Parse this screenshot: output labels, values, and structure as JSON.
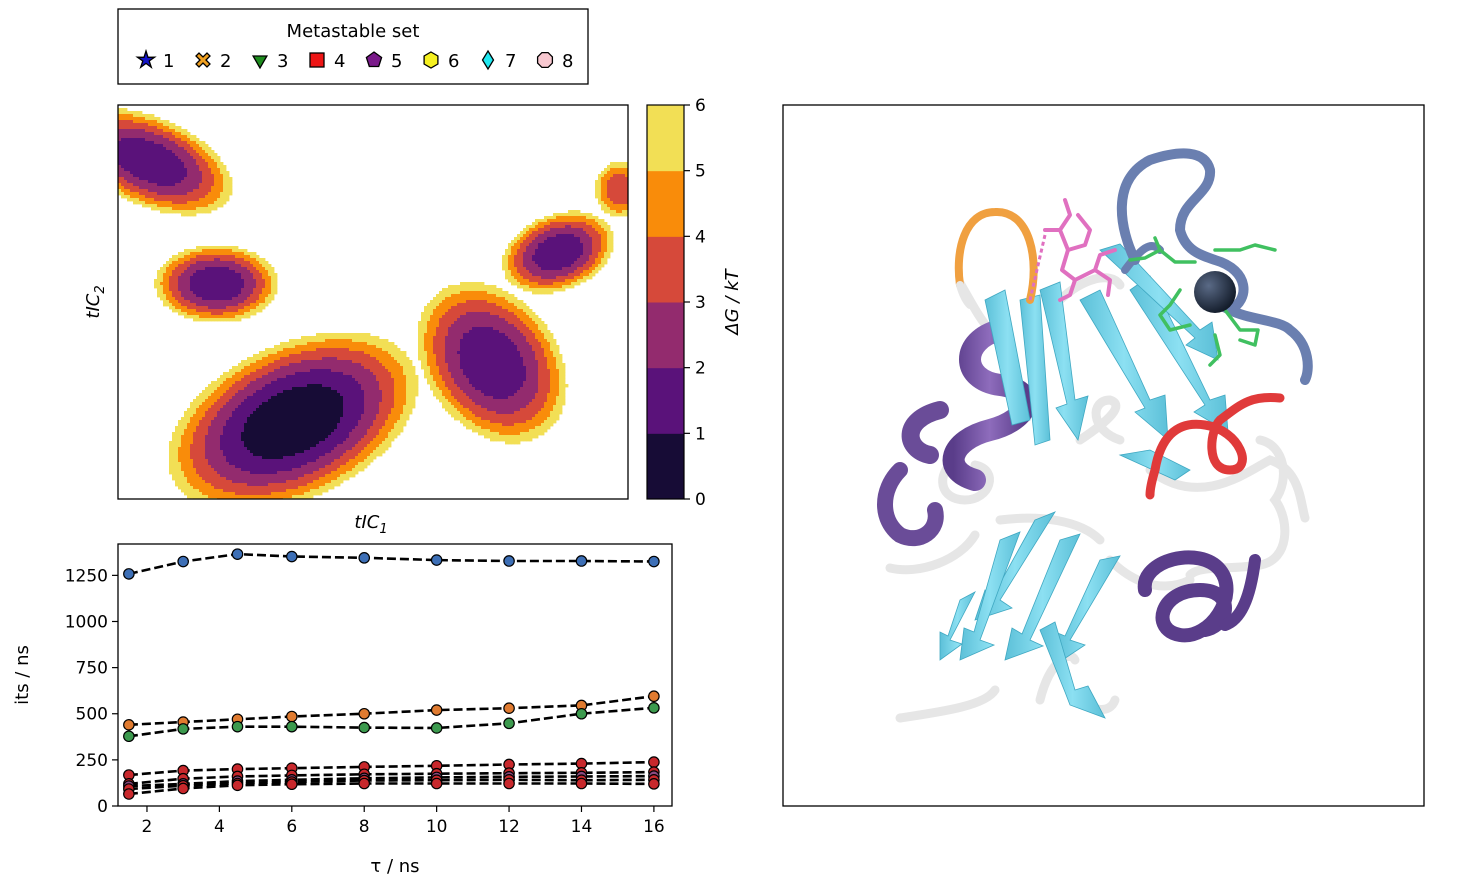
{
  "legend": {
    "title": "Metastable set",
    "entries": [
      {
        "label": "1",
        "marker": "star",
        "color": "#1515c8"
      },
      {
        "label": "2",
        "marker": "x-filled",
        "color": "#f0a020"
      },
      {
        "label": "3",
        "marker": "triangle-down",
        "color": "#1e8c1e"
      },
      {
        "label": "4",
        "marker": "square",
        "color": "#ee1515"
      },
      {
        "label": "5",
        "marker": "pentagon",
        "color": "#7a1a8a"
      },
      {
        "label": "6",
        "marker": "hexagon",
        "color": "#f5f020"
      },
      {
        "label": "7",
        "marker": "thin-diamond",
        "color": "#20e8f0"
      },
      {
        "label": "8",
        "marker": "octagon",
        "color": "#f8c8d0"
      }
    ]
  },
  "colorbar": {
    "label": "ΔG / kT",
    "ticks": [
      "0",
      "1",
      "2",
      "3",
      "4",
      "5",
      "6"
    ],
    "colors": [
      "#170c36",
      "#5a127a",
      "#932b6e",
      "#d6493a",
      "#f98c0a",
      "#f2df55"
    ]
  },
  "chart_data": [
    {
      "type": "heatmap",
      "subtype": "filled-contour",
      "xlabel": "tIC",
      "xlabel_sub": "1",
      "ylabel": "tIC",
      "ylabel_sub": "2",
      "levels": [
        0,
        1,
        2,
        3,
        4,
        5,
        6
      ],
      "colormap": "inferno",
      "axis_ticks": "none",
      "basins": [
        {
          "cx": -0.88,
          "cy": 0.72,
          "rx": 0.14,
          "ry": 0.24,
          "angle": 55,
          "min_level": 1
        },
        {
          "cx": -0.62,
          "cy": 0.1,
          "rx": 0.16,
          "ry": 0.13,
          "angle": 0,
          "min_level": 1
        },
        {
          "cx": -0.32,
          "cy": -0.6,
          "rx": 0.34,
          "ry": 0.22,
          "angle": 40,
          "min_level": 0
        },
        {
          "cx": 0.46,
          "cy": -0.3,
          "rx": 0.18,
          "ry": 0.28,
          "angle": 20,
          "min_level": 1
        },
        {
          "cx": 0.72,
          "cy": 0.26,
          "rx": 0.16,
          "ry": 0.12,
          "angle": 40,
          "min_level": 1
        },
        {
          "cx": 0.96,
          "cy": 0.58,
          "rx": 0.08,
          "ry": 0.12,
          "angle": 0,
          "min_level": 3
        }
      ]
    },
    {
      "type": "line",
      "xlabel": "τ / ns",
      "ylabel": "its / ns",
      "x": [
        1.5,
        3,
        4.5,
        6,
        8,
        10,
        12,
        14,
        16
      ],
      "xlim": [
        1.2,
        16.5
      ],
      "ylim": [
        0,
        1420
      ],
      "xticks": [
        2,
        4,
        6,
        8,
        10,
        12,
        14,
        16
      ],
      "yticks": [
        0,
        250,
        500,
        750,
        1000,
        1250
      ],
      "line_style": "dashed",
      "line_color": "#000000",
      "series": [
        {
          "color": "#3d6fb6",
          "values": [
            1258,
            1325,
            1365,
            1352,
            1345,
            1333,
            1328,
            1328,
            1325
          ]
        },
        {
          "color": "#e07b30",
          "values": [
            440,
            455,
            470,
            485,
            500,
            520,
            530,
            545,
            595
          ]
        },
        {
          "color": "#3c9a4e",
          "values": [
            378,
            418,
            430,
            430,
            425,
            423,
            448,
            500,
            532
          ]
        },
        {
          "color": "#c8282c",
          "values": [
            168,
            192,
            200,
            205,
            212,
            218,
            225,
            230,
            238
          ]
        },
        {
          "color": "#c8282c",
          "values": [
            120,
            148,
            160,
            166,
            172,
            175,
            178,
            180,
            184
          ]
        },
        {
          "color": "#8c4a80",
          "values": [
            108,
            120,
            135,
            142,
            150,
            155,
            158,
            160,
            162
          ]
        },
        {
          "color": "#c8282c",
          "values": [
            92,
            110,
            122,
            130,
            138,
            140,
            142,
            140,
            142
          ]
        },
        {
          "color": "#c8282c",
          "values": [
            65,
            95,
            112,
            118,
            122,
            122,
            122,
            122,
            120
          ]
        }
      ]
    }
  ],
  "structure_panel": {
    "elements": [
      {
        "kind": "beta-strand",
        "color": "#73d2e8"
      },
      {
        "kind": "helix",
        "color": "#7755a0"
      },
      {
        "kind": "loop",
        "color": "#e8e8e8"
      },
      {
        "kind": "loop-highlight",
        "color": "#6a7fb0"
      },
      {
        "kind": "loop-highlight",
        "color": "#e03030"
      },
      {
        "kind": "loop-highlight",
        "color": "#f0a040"
      },
      {
        "kind": "ligand-sticks",
        "color": "#e070c0"
      },
      {
        "kind": "sidechain-sticks",
        "color": "#40d070"
      },
      {
        "kind": "metal-ion",
        "color": "#1e2a3c"
      }
    ]
  }
}
